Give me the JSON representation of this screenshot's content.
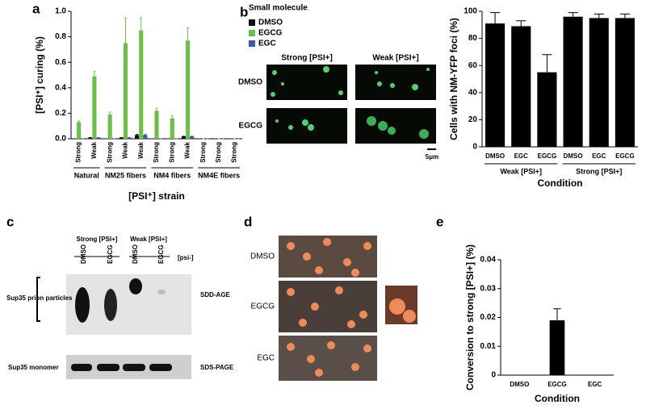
{
  "chart_data": [
    {
      "type": "bar",
      "ylabel": "[PSI⁺] curing (%)",
      "xlabel": "[PSI⁺] strain",
      "legend_title": "Small molecule",
      "groups": [
        {
          "name": "Natural",
          "categories": [
            "Strong",
            "Weak"
          ]
        },
        {
          "name": "NM25 fibers",
          "categories": [
            "Strong",
            "Weak",
            "Weak"
          ]
        },
        {
          "name": "NM4 fibers",
          "categories": [
            "Strong",
            "Strong",
            "Weak"
          ]
        },
        {
          "name": "NM4E fibers",
          "categories": [
            "Strong",
            "Strong",
            "Strong"
          ]
        }
      ],
      "series": [
        {
          "name": "DMSO",
          "color": "#111111",
          "values": [
            0,
            0.01,
            0,
            0.01,
            0.03,
            0,
            0,
            0.02,
            0,
            0,
            0
          ],
          "errors": [
            0,
            0,
            0,
            0,
            0.005,
            0,
            0,
            0,
            0,
            0,
            0
          ]
        },
        {
          "name": "EGCG",
          "color": "#6cc04a",
          "values": [
            0.13,
            0.49,
            0.19,
            0.75,
            0.85,
            0.22,
            0.16,
            0.77,
            0,
            0,
            0
          ],
          "errors": [
            0.01,
            0.04,
            0.02,
            0.2,
            0.1,
            0.02,
            0.02,
            0.1,
            0,
            0,
            0
          ]
        },
        {
          "name": "EGC",
          "color": "#3b5ba5",
          "values": [
            0,
            0.01,
            0,
            0.01,
            0.03,
            0,
            0,
            0.02,
            0,
            0,
            0
          ],
          "errors": [
            0,
            0,
            0,
            0,
            0.005,
            0,
            0,
            0,
            0,
            0,
            0
          ]
        }
      ],
      "ylim": [
        0,
        1.0
      ],
      "yticks": [
        {
          "value": 0,
          "label": "0.0"
        },
        0.2,
        0.4,
        0.6,
        0.8,
        {
          "value": 1,
          "label": "1.0"
        }
      ]
    },
    {
      "type": "bar",
      "ylabel": "Cells with NM-YFP foci (%)",
      "xlabel": "Condition",
      "groups": [
        {
          "name": "Weak [PSI+]",
          "categories": [
            "DMSO",
            "EGC",
            "EGCG"
          ]
        },
        {
          "name": "Strong [PSI+]",
          "categories": [
            "DMSO",
            "EGC",
            "EGCG"
          ]
        }
      ],
      "values": [
        91,
        89,
        55,
        96,
        95,
        95
      ],
      "errors": [
        8,
        4,
        13,
        3,
        3,
        3
      ],
      "color": "#000000",
      "ylim": [
        0,
        100
      ],
      "yticks": [
        0,
        20,
        40,
        60,
        80,
        100
      ]
    },
    {
      "type": "bar",
      "ylabel": "Conversion to strong [PSI+] (%)",
      "xlabel": "Condition",
      "categories": [
        "DMSO",
        "EGCG",
        "EGC"
      ],
      "values": [
        0,
        0.019,
        0
      ],
      "errors": [
        0,
        0.004,
        0
      ],
      "color": "#000000",
      "ylim": [
        0,
        0.04
      ],
      "yticks": [
        0,
        0.01,
        0.02,
        0.03,
        0.04
      ]
    }
  ],
  "figure": {
    "panel_labels": [
      "a",
      "b",
      "c",
      "d",
      "e"
    ],
    "micrographs": {
      "columns": [
        "Strong [PSI+]",
        "Weak [PSI+]"
      ],
      "rows": [
        "DMSO",
        "EGCG"
      ],
      "scale": "5μm"
    },
    "gel": {
      "lanes": [
        "DMSO",
        "EGCG",
        "DMSO",
        "EGCG",
        "[psi-]"
      ],
      "strains": [
        "Strong [PSI+]",
        "Weak [PSI+]"
      ],
      "band_labels": [
        "Sup35 prion particles",
        "Sup35 monomer"
      ],
      "methods": [
        "SDD-AGE",
        "SDS-PAGE"
      ]
    },
    "plates": {
      "rows": [
        "DMSO",
        "EGCG",
        "EGC"
      ]
    }
  }
}
